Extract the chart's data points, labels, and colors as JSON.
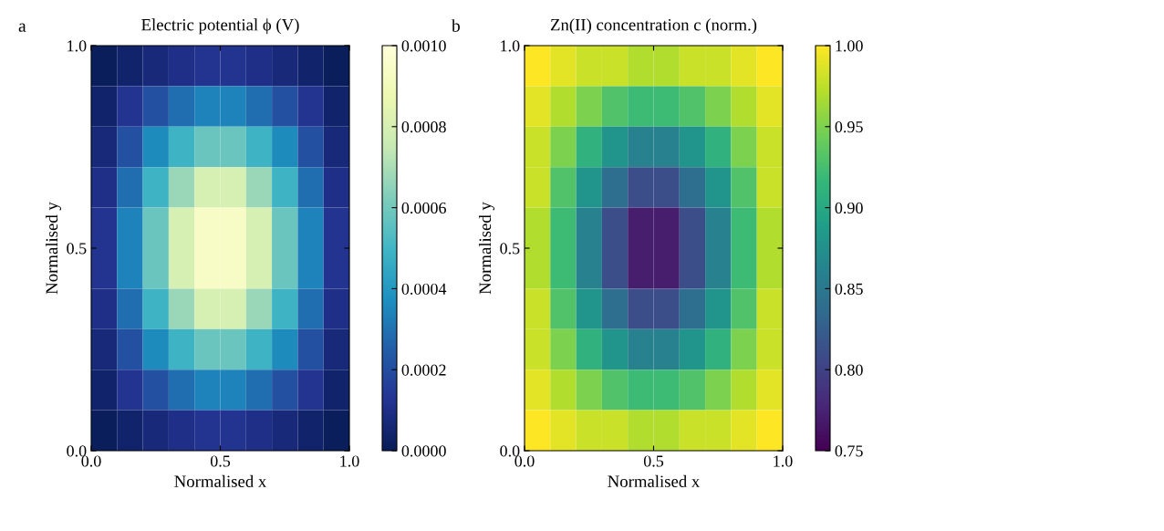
{
  "chart_data": [
    {
      "type": "heatmap",
      "title": "Electric potential ϕ (V)",
      "xlabel": "Normalised x",
      "ylabel": "Normalised y",
      "annotations": [
        "a"
      ],
      "x": [
        0.05,
        0.15,
        0.25,
        0.35,
        0.45,
        0.55,
        0.65,
        0.75,
        0.85,
        0.95
      ],
      "y": [
        0.95,
        0.85,
        0.75,
        0.65,
        0.55,
        0.45,
        0.35,
        0.25,
        0.15,
        0.05
      ],
      "cells": [
        [
          1e-05,
          4e-05,
          7e-05,
          0.0001,
          0.00012,
          0.00012,
          0.0001,
          7e-05,
          4e-05,
          1e-05
        ],
        [
          4e-05,
          0.00012,
          0.00021,
          0.00029,
          0.00034,
          0.00034,
          0.00029,
          0.00021,
          0.00012,
          4e-05
        ],
        [
          7e-05,
          0.00021,
          0.00036,
          0.00049,
          0.00058,
          0.00058,
          0.00049,
          0.00036,
          0.00021,
          7e-05
        ],
        [
          0.0001,
          0.00029,
          0.00049,
          0.00067,
          0.0008,
          0.0008,
          0.00067,
          0.00049,
          0.00029,
          0.0001
        ],
        [
          0.00012,
          0.00034,
          0.00058,
          0.0008,
          0.00094,
          0.00094,
          0.0008,
          0.00058,
          0.00034,
          0.00012
        ],
        [
          0.00012,
          0.00034,
          0.00058,
          0.0008,
          0.00094,
          0.00094,
          0.0008,
          0.00058,
          0.00034,
          0.00012
        ],
        [
          0.0001,
          0.00029,
          0.00049,
          0.00067,
          0.0008,
          0.0008,
          0.00067,
          0.00049,
          0.00029,
          0.0001
        ],
        [
          7e-05,
          0.00021,
          0.00036,
          0.00049,
          0.00058,
          0.00058,
          0.00049,
          0.00036,
          0.00021,
          7e-05
        ],
        [
          4e-05,
          0.00012,
          0.00021,
          0.00029,
          0.00034,
          0.00034,
          0.00029,
          0.00021,
          0.00012,
          4e-05
        ],
        [
          1e-05,
          4e-05,
          7e-05,
          0.0001,
          0.00012,
          0.00012,
          0.0001,
          7e-05,
          4e-05,
          1e-05
        ]
      ],
      "colors": [
        "#081d58",
        "#253494",
        "#225ea8",
        "#1d91c0",
        "#41b6c4",
        "#7fcdbb",
        "#c7e9b4",
        "#edf8b1",
        "#ffffd9"
      ],
      "xlim": [
        0,
        1
      ],
      "ylim": [
        0,
        1
      ],
      "xticks": [
        {
          "value": 0,
          "label": "0.0"
        },
        {
          "value": 0.5,
          "label": "0.5"
        },
        {
          "value": 1,
          "label": "1.0"
        }
      ],
      "yticks": [
        {
          "value": 0,
          "label": "0.0"
        },
        {
          "value": 0.5,
          "label": "0.5"
        },
        {
          "value": 1,
          "label": "1.0"
        }
      ],
      "clim": [
        0,
        0.001
      ],
      "cticks": [
        {
          "value": 0,
          "label": "0.0000"
        },
        {
          "value": 0.0002,
          "label": "0.0002"
        },
        {
          "value": 0.0004,
          "label": "0.0004"
        },
        {
          "value": 0.0006,
          "label": "0.0006"
        },
        {
          "value": 0.0008,
          "label": "0.0008"
        },
        {
          "value": 0.001,
          "label": "0.0010"
        }
      ]
    },
    {
      "type": "heatmap",
      "title": "Zn(II) concentration c (norm.)",
      "xlabel": "Normalised x",
      "ylabel": "Normalised y",
      "annotations": [
        "b"
      ],
      "x": [
        0.05,
        0.15,
        0.25,
        0.35,
        0.45,
        0.55,
        0.65,
        0.75,
        0.85,
        0.95
      ],
      "y": [
        0.95,
        0.85,
        0.75,
        0.65,
        0.55,
        0.45,
        0.35,
        0.25,
        0.15,
        0.05
      ],
      "cells": [
        [
          1.0,
          0.99,
          0.98,
          0.98,
          0.97,
          0.97,
          0.98,
          0.98,
          0.99,
          1.0
        ],
        [
          0.99,
          0.97,
          0.95,
          0.93,
          0.92,
          0.92,
          0.93,
          0.95,
          0.97,
          0.99
        ],
        [
          0.98,
          0.95,
          0.91,
          0.88,
          0.86,
          0.86,
          0.88,
          0.91,
          0.95,
          0.98
        ],
        [
          0.98,
          0.93,
          0.88,
          0.84,
          0.81,
          0.81,
          0.84,
          0.88,
          0.93,
          0.98
        ],
        [
          0.97,
          0.92,
          0.86,
          0.81,
          0.77,
          0.77,
          0.81,
          0.86,
          0.92,
          0.97
        ],
        [
          0.97,
          0.92,
          0.86,
          0.81,
          0.77,
          0.77,
          0.81,
          0.86,
          0.92,
          0.97
        ],
        [
          0.98,
          0.93,
          0.88,
          0.84,
          0.81,
          0.81,
          0.84,
          0.88,
          0.93,
          0.98
        ],
        [
          0.98,
          0.95,
          0.91,
          0.88,
          0.86,
          0.86,
          0.88,
          0.91,
          0.95,
          0.98
        ],
        [
          0.99,
          0.97,
          0.95,
          0.93,
          0.92,
          0.92,
          0.93,
          0.95,
          0.97,
          0.99
        ],
        [
          1.0,
          0.99,
          0.98,
          0.98,
          0.97,
          0.97,
          0.98,
          0.98,
          0.99,
          1.0
        ]
      ],
      "colors": [
        "#440154",
        "#482878",
        "#3e4989",
        "#31688e",
        "#26828e",
        "#1f9e89",
        "#35b779",
        "#6ece58",
        "#b5de2b",
        "#fde725"
      ],
      "xlim": [
        0,
        1
      ],
      "ylim": [
        0,
        1
      ],
      "xticks": [
        {
          "value": 0,
          "label": "0.0"
        },
        {
          "value": 0.5,
          "label": "0.5"
        },
        {
          "value": 1,
          "label": "1.0"
        }
      ],
      "yticks": [
        {
          "value": 0,
          "label": "0.0"
        },
        {
          "value": 0.5,
          "label": "0.5"
        },
        {
          "value": 1,
          "label": "1.0"
        }
      ],
      "clim": [
        0.75,
        1.0
      ],
      "cticks": [
        {
          "value": 0.75,
          "label": "0.75"
        },
        {
          "value": 0.8,
          "label": "0.80"
        },
        {
          "value": 0.85,
          "label": "0.85"
        },
        {
          "value": 0.9,
          "label": "0.90"
        },
        {
          "value": 0.95,
          "label": "0.95"
        },
        {
          "value": 1.0,
          "label": "1.00"
        }
      ]
    }
  ]
}
